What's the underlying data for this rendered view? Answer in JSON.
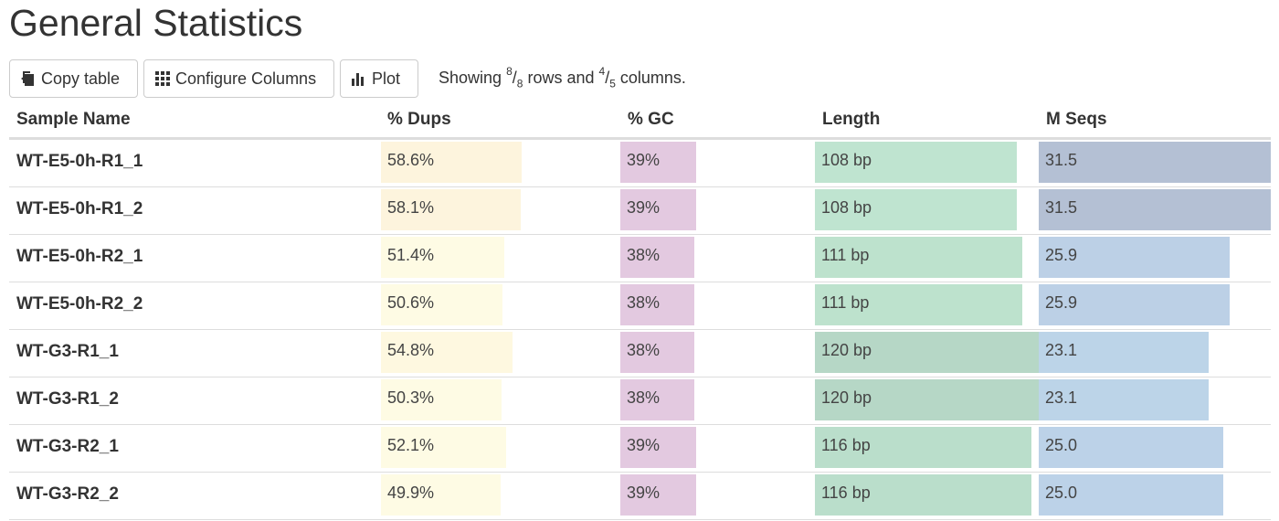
{
  "title": "General Statistics",
  "toolbar": {
    "copy_label": "Copy table",
    "configure_label": "Configure Columns",
    "plot_label": "Plot",
    "showing_prefix": "Showing ",
    "rows_shown": "8",
    "rows_total": "8",
    "rows_suffix": " rows and ",
    "cols_shown": "4",
    "cols_total": "5",
    "cols_suffix": " columns."
  },
  "columns": {
    "name": "Sample Name",
    "dups": "% Dups",
    "gc": "% GC",
    "length": "Length",
    "mseqs": "M Seqs"
  },
  "rows": [
    {
      "name": "WT-E5-0h-R1_1",
      "dups": "58.6%",
      "dups_frac": 0.586,
      "dups_color": "#fdf4dd",
      "gc": "39%",
      "gc_frac": 0.39,
      "length": "108 bp",
      "length_frac": 0.9,
      "length_color": "#bfe4d0",
      "mseqs": "31.5",
      "mseqs_frac": 1.0,
      "mseqs_color": "#b4c0d4"
    },
    {
      "name": "WT-E5-0h-R1_2",
      "dups": "58.1%",
      "dups_frac": 0.581,
      "dups_color": "#fdf4dd",
      "gc": "39%",
      "gc_frac": 0.39,
      "length": "108 bp",
      "length_frac": 0.9,
      "length_color": "#bfe4d0",
      "mseqs": "31.5",
      "mseqs_frac": 1.0,
      "mseqs_color": "#b4c0d4"
    },
    {
      "name": "WT-E5-0h-R2_1",
      "dups": "51.4%",
      "dups_frac": 0.514,
      "dups_color": "#fefbe4",
      "gc": "38%",
      "gc_frac": 0.38,
      "length": "111 bp",
      "length_frac": 0.925,
      "length_color": "#bde2cd",
      "mseqs": "25.9",
      "mseqs_frac": 0.822,
      "mseqs_color": "#bcd0e6"
    },
    {
      "name": "WT-E5-0h-R2_2",
      "dups": "50.6%",
      "dups_frac": 0.506,
      "dups_color": "#fefbe4",
      "gc": "38%",
      "gc_frac": 0.38,
      "length": "111 bp",
      "length_frac": 0.925,
      "length_color": "#bde2cd",
      "mseqs": "25.9",
      "mseqs_frac": 0.822,
      "mseqs_color": "#bcd0e6"
    },
    {
      "name": "WT-G3-R1_1",
      "dups": "54.8%",
      "dups_frac": 0.548,
      "dups_color": "#fef8e0",
      "gc": "38%",
      "gc_frac": 0.38,
      "length": "120 bp",
      "length_frac": 1.0,
      "length_color": "#b6d7c6",
      "mseqs": "23.1",
      "mseqs_frac": 0.733,
      "mseqs_color": "#bcd4e8"
    },
    {
      "name": "WT-G3-R1_2",
      "dups": "50.3%",
      "dups_frac": 0.503,
      "dups_color": "#fefbe4",
      "gc": "38%",
      "gc_frac": 0.38,
      "length": "120 bp",
      "length_frac": 1.0,
      "length_color": "#b6d7c6",
      "mseqs": "23.1",
      "mseqs_frac": 0.733,
      "mseqs_color": "#bcd4e8"
    },
    {
      "name": "WT-G3-R2_1",
      "dups": "52.1%",
      "dups_frac": 0.521,
      "dups_color": "#fefbe4",
      "gc": "39%",
      "gc_frac": 0.39,
      "length": "116 bp",
      "length_frac": 0.967,
      "length_color": "#badecb",
      "mseqs": "25.0",
      "mseqs_frac": 0.794,
      "mseqs_color": "#bcd2e8"
    },
    {
      "name": "WT-G3-R2_2",
      "dups": "49.9%",
      "dups_frac": 0.499,
      "dups_color": "#fefbe4",
      "gc": "39%",
      "gc_frac": 0.39,
      "length": "116 bp",
      "length_frac": 0.967,
      "length_color": "#badecb",
      "mseqs": "25.0",
      "mseqs_frac": 0.794,
      "mseqs_color": "#bcd2e8"
    }
  ],
  "colors": {
    "gc_bar": "#e3c9e0",
    "border": "#dddddd"
  },
  "icons": {
    "copy": "copy-icon",
    "configure": "grid-icon",
    "plot": "bar-chart-icon"
  }
}
